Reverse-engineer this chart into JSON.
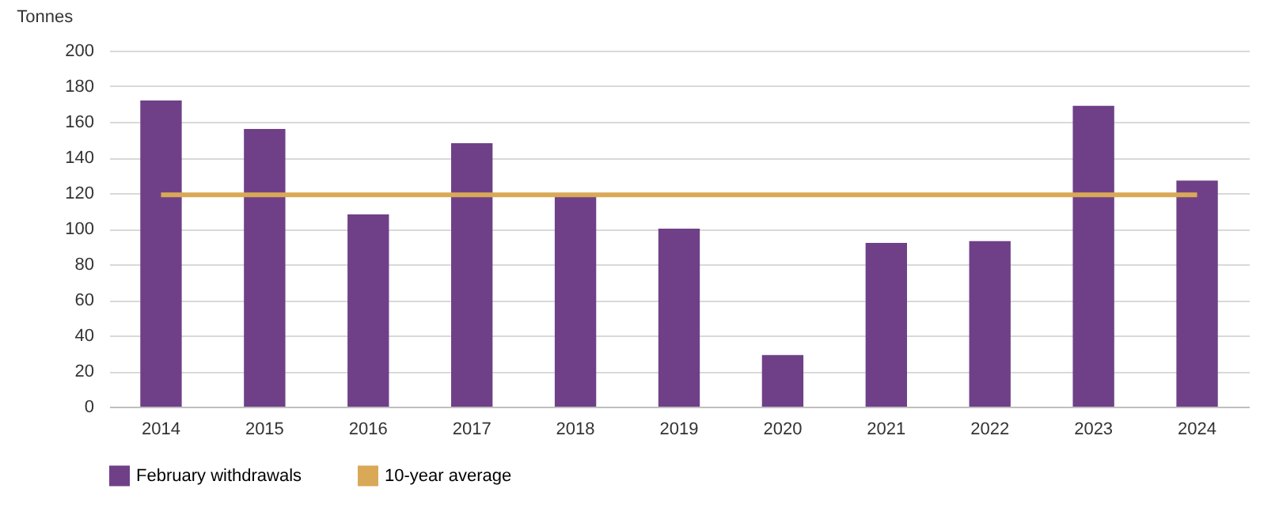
{
  "chart_data": {
    "type": "bar",
    "ylabel": "Tonnes",
    "categories": [
      "2014",
      "2015",
      "2016",
      "2017",
      "2018",
      "2019",
      "2020",
      "2021",
      "2022",
      "2023",
      "2024"
    ],
    "series": [
      {
        "name": "February withdrawals",
        "color": "#6f4088",
        "values": [
          172,
          156,
          108,
          148,
          118,
          100,
          29,
          92,
          93,
          169,
          127
        ]
      },
      {
        "name": "10-year average",
        "type": "line",
        "color": "#d9a957",
        "values": [
          119,
          119,
          119,
          119,
          119,
          119,
          119,
          119,
          119,
          119,
          119
        ]
      }
    ],
    "ylim": [
      0,
      200
    ],
    "yticks": [
      0,
      20,
      40,
      60,
      80,
      100,
      120,
      140,
      160,
      180,
      200
    ],
    "grid": "y",
    "legend": "bottom",
    "marker": "none"
  }
}
